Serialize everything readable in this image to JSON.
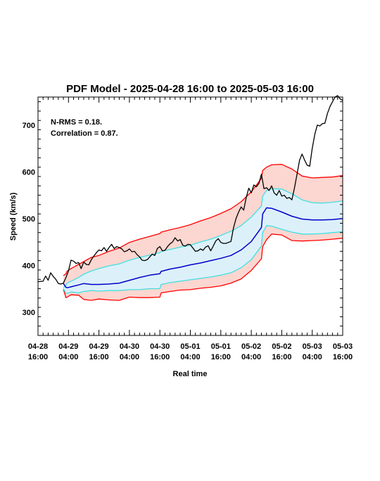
{
  "chart_data": {
    "type": "line",
    "title": "PDF Model - 2025-04-28 16:00 to 2025-05-03 16:00",
    "xlabel": "Real time",
    "ylabel": "Speed (km/s)",
    "annotations": [
      "N-RMS = 0.18.",
      "Correlation = 0.87."
    ],
    "x_unit": "hours since 04-28 16:00",
    "xlim": [
      0,
      120
    ],
    "ylim": [
      250,
      760
    ],
    "yticks": [
      300,
      400,
      500,
      600,
      700
    ],
    "xticks": [
      {
        "x": 0,
        "date": "04-28",
        "time": "16:00"
      },
      {
        "x": 12,
        "date": "04-29",
        "time": "04:00"
      },
      {
        "x": 24,
        "date": "04-29",
        "time": "16:00"
      },
      {
        "x": 36,
        "date": "04-30",
        "time": "04:00"
      },
      {
        "x": 48,
        "date": "04-30",
        "time": "16:00"
      },
      {
        "x": 60,
        "date": "05-01",
        "time": "04:00"
      },
      {
        "x": 72,
        "date": "05-01",
        "time": "16:00"
      },
      {
        "x": 84,
        "date": "05-02",
        "time": "04:00"
      },
      {
        "x": 96,
        "date": "05-02",
        "time": "16:00"
      },
      {
        "x": 108,
        "date": "05-03",
        "time": "04:00"
      },
      {
        "x": 120,
        "date": "05-03",
        "time": "16:00"
      }
    ],
    "colors": {
      "observed": "#000000",
      "median": "#0000c8",
      "inner_band": "#40e0e0",
      "outer_band": "#ff0000",
      "outer_fill": "#fcd6d0",
      "inner_fill": "#dcf0fa"
    },
    "series": [
      {
        "key": "upper_outer",
        "x": [
          10,
          11,
          11.5,
          13,
          16,
          18,
          21,
          24,
          28,
          32,
          36,
          40,
          44,
          48,
          48.5,
          52,
          56,
          60,
          64,
          68,
          72,
          76,
          80,
          84,
          88,
          88.5,
          90,
          92,
          96,
          100,
          104,
          108,
          112,
          116,
          120
        ],
        "values": [
          378,
          382,
          388,
          393,
          402,
          408,
          417,
          421,
          430,
          437,
          449,
          456,
          462,
          468,
          471,
          476,
          481,
          487,
          495,
          502,
          511,
          521,
          536,
          557,
          586,
          603,
          610,
          615,
          616,
          606,
          591,
          587,
          588,
          589,
          592
        ]
      },
      {
        "key": "upper_inner",
        "x": [
          10,
          11,
          11.5,
          13,
          16,
          18,
          21,
          24,
          28,
          32,
          36,
          40,
          44,
          48,
          48.5,
          52,
          56,
          60,
          64,
          68,
          72,
          76,
          80,
          84,
          88,
          88.5,
          90,
          92,
          96,
          100,
          104,
          108,
          112,
          116,
          120
        ],
        "values": [
          352,
          357,
          362,
          366,
          374,
          381,
          388,
          393,
          399,
          403,
          411,
          417,
          422,
          427,
          430,
          434,
          439,
          443,
          450,
          456,
          464,
          473,
          485,
          503,
          527,
          548,
          560,
          564,
          563,
          553,
          540,
          534,
          533,
          535,
          538
        ]
      },
      {
        "key": "median",
        "x": [
          10,
          11,
          11.5,
          13,
          16,
          18,
          21,
          24,
          28,
          32,
          36,
          40,
          44,
          48,
          48.5,
          52,
          56,
          60,
          64,
          68,
          72,
          76,
          80,
          84,
          88,
          88.5,
          90,
          92,
          96,
          100,
          104,
          108,
          112,
          116,
          120
        ],
        "values": [
          361,
          353,
          352,
          354,
          358,
          361,
          359,
          359,
          360,
          362,
          368,
          374,
          379,
          382,
          387,
          392,
          396,
          401,
          405,
          410,
          415,
          421,
          433,
          451,
          481,
          510,
          523,
          522,
          514,
          505,
          499,
          497,
          497,
          498,
          500
        ]
      },
      {
        "key": "lower_inner",
        "x": [
          10,
          11,
          11.5,
          13,
          16,
          18,
          21,
          24,
          28,
          32,
          36,
          40,
          44,
          48,
          48.5,
          52,
          56,
          60,
          64,
          68,
          72,
          76,
          80,
          84,
          88,
          88.5,
          90,
          92,
          96,
          100,
          104,
          108,
          112,
          116,
          120
        ],
        "values": [
          350,
          340,
          340,
          343,
          341,
          344,
          346,
          345,
          346,
          346,
          348,
          348,
          350,
          350,
          359,
          363,
          366,
          369,
          372,
          375,
          379,
          384,
          395,
          412,
          441,
          470,
          485,
          484,
          477,
          471,
          467,
          467,
          468,
          470,
          472
        ]
      },
      {
        "key": "lower_outer",
        "x": [
          10,
          11,
          11.5,
          13,
          16,
          18,
          21,
          24,
          28,
          32,
          36,
          40,
          44,
          48,
          48.5,
          52,
          56,
          60,
          64,
          68,
          72,
          76,
          80,
          84,
          88,
          88.5,
          90,
          92,
          96,
          100,
          104,
          108,
          112,
          116,
          120
        ],
        "values": [
          349,
          331,
          332,
          337,
          336,
          327,
          325,
          328,
          326,
          325,
          332,
          331,
          331,
          332,
          341,
          344,
          347,
          348,
          351,
          353,
          356,
          362,
          371,
          389,
          414,
          440,
          455,
          467,
          465,
          453,
          452,
          453,
          454,
          456,
          458
        ]
      },
      {
        "key": "observed",
        "x": [
          0,
          2,
          3,
          4,
          5,
          6,
          7,
          8,
          9,
          10,
          11,
          12,
          13,
          14,
          15,
          16,
          17,
          18,
          19,
          20,
          21,
          22,
          23,
          24,
          25,
          26,
          27,
          28,
          29,
          30,
          31,
          32,
          33,
          34,
          35,
          36,
          37,
          38,
          39,
          40,
          41,
          42,
          43,
          44,
          45,
          46,
          47,
          48,
          49,
          50,
          51,
          52,
          53,
          54,
          55,
          56,
          57,
          58,
          59,
          60,
          61,
          62,
          63,
          64,
          65,
          66,
          67,
          68,
          69,
          70,
          71,
          72,
          73,
          74,
          75,
          76,
          77,
          78,
          79,
          80,
          81,
          82,
          83,
          84,
          85,
          86,
          87,
          88,
          89,
          90,
          91,
          92,
          93,
          94,
          95,
          96,
          97,
          98,
          99,
          100,
          101,
          102,
          103,
          104,
          105,
          106,
          107,
          108,
          109,
          110,
          111,
          112,
          113,
          114,
          115,
          116,
          117,
          118,
          119,
          120
        ],
        "values": [
          365,
          366,
          377,
          368,
          384,
          376,
          370,
          361,
          360,
          362,
          374,
          388,
          411,
          409,
          404,
          406,
          393,
          407,
          402,
          401,
          412,
          420,
          427,
          433,
          431,
          438,
          430,
          438,
          445,
          436,
          440,
          438,
          435,
          429,
          431,
          435,
          429,
          430,
          423,
          418,
          411,
          410,
          412,
          418,
          424,
          421,
          436,
          440,
          431,
          432,
          440,
          446,
          450,
          459,
          452,
          455,
          443,
          441,
          445,
          444,
          437,
          430,
          431,
          435,
          432,
          439,
          442,
          431,
          441,
          452,
          457,
          449,
          447,
          447,
          449,
          451,
          480,
          500,
          514,
          525,
          518,
          545,
          565,
          555,
          572,
          568,
          575,
          595,
          564,
          566,
          560,
          570,
          555,
          550,
          560,
          548,
          550,
          543,
          545,
          540,
          565,
          595,
          625,
          638,
          625,
          614,
          612,
          650,
          680,
          700,
          698,
          703,
          704,
          725,
          740,
          750,
          760,
          763,
          756,
          753
        ]
      }
    ]
  }
}
